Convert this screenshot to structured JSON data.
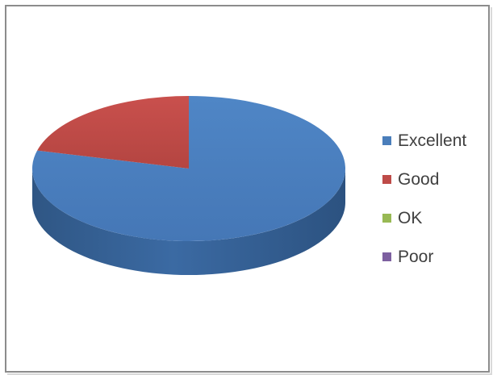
{
  "chart_data": {
    "type": "pie",
    "title": "",
    "three_d": true,
    "legend_position": "right",
    "categories": [
      "Excellent",
      "Good",
      "OK",
      "Poor"
    ],
    "values": [
      79,
      21,
      0,
      0
    ],
    "colors": [
      "#4a7ebb",
      "#be4b48",
      "#98b954",
      "#7d60a0"
    ]
  }
}
